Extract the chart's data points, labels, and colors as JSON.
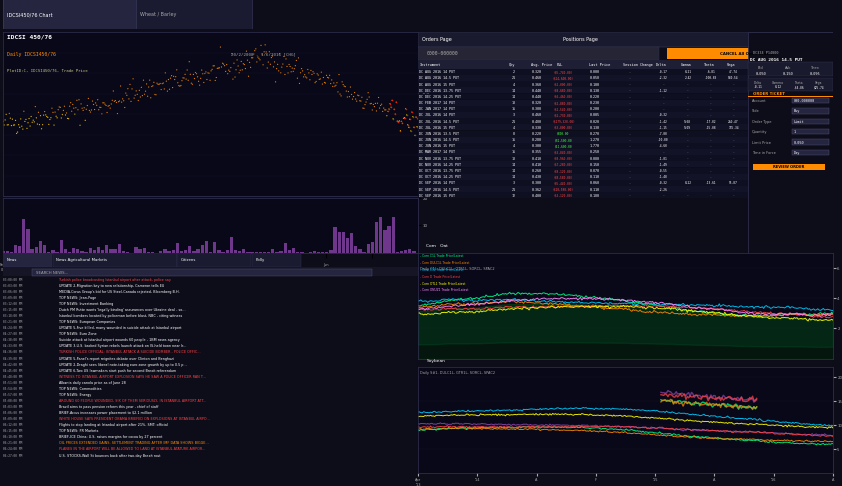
{
  "dark_bg": "#0d0d1a",
  "accent_orange": "#ff8c00",
  "text_white": "#ffffff",
  "text_gray": "#aaaaaa",
  "text_orange": "#ff8c00",
  "text_red": "#ff4444",
  "text_green": "#44ff44",
  "news_headlines": [
    "Turkish police broadcasting Istanbul airport after attack, police say",
    "UPDATE 2-Migration key to new relationship, Cameron tells EU",
    "MEDIA-Corus Group's bid for US Steel-Canada rejected- Bloomberg B.H.",
    "TOP NEWS: Jean-Page",
    "TOP NEWS: Investment Banking",
    "Dutch PM Rutte wants 'legally binding' assurances over Ukraine deal - sources",
    "Istanbul bombers located by policeman before blast, NBC - citing witness",
    "TOP NEWS: European Companies",
    "UPDATE 5-Five killed, many wounded in suicide attack at Istanbul airport",
    "TOP NEWS: Euro Zone",
    "Suicide attack at Istanbul airport wounds 60 people - 1BM news agency",
    "UPDATE 3-U.S. backed Syrian rebels launch attack on IS-held town near Iraq border",
    "TURKISH POLICE OFFICIAL: ISTANBUL ATTACK A SUICIDE BOMBER - POLICE OFFICIAL TELLS REUTERS",
    "UPDATE 5-Panel's report reignites debate over Clinton and Benghazi",
    "UPDATE 2-Draghi sees liberal note-taking euro zone growth by up to 0.5 pct over 3 years",
    "UPDATE 6-Two US lawmakers start push for second Brexit referendum",
    "WITNESS TO ISTANBUL AIRPORT EXPLOSION SAYS HE SAW A POLICE OFFICER RAN TO A SUICIDE BOMBER",
    "Albania daily canola price as of June 28",
    "TOP NEWS: Commodities",
    "TOP NEWS: Energy",
    "AROUND 60 PEOPLE WOUNDED, SIX OF THEM SERIOUSLY, IN ISTANBUL AIRPORT ATTACK - ANADOLU AGENCY",
    "Brazil aims to pass pension reform this year - chief of staff",
    "BRIEF-Arcus increases power placement to $2.1 million",
    "WHITE HOUSE SAYS PRESIDENT OBAMA BRIEFED ON EXPLOSIONS AT ISTANBUL AIRPORT ON TUESDAY",
    "Flights to stop landing at Istanbul airport after 21%- SMT: official",
    "TOP NEWS: PR Markets",
    "BRIEF-ICE China: U.S. raises margins for cocoa by 27 percent",
    "OIL PRICES EXTENDED GAINS, SETTLEMENT TRADING AFTER IMF DATA SHOWS BIGGER DRAWDOWN IN U.S. CRUDE STOCKS",
    "PLANES IN THE AIRPORT WILL BE ALLOWED TO LAND AT ISTANBUL ATATURK AIRPORT - TURKISH AIRLINES OFFICIAL",
    "U.S. STOCKS-Wall St bounces back after two-day Brexit rout"
  ],
  "positions": [
    {
      "instrument": "DC AUG 2016 14 PUT",
      "qty": 2,
      "avg_price": 0.32,
      "pnl": -5740.0,
      "last_price": 0.0,
      "delta": -0.17,
      "gamma": 0.21,
      "theta": -6.81,
      "vega": 47.74
    },
    {
      "instrument": "DC AUG 2016 14.5 PUT",
      "qty": 21,
      "avg_price": 0.46,
      "pnl": -14600.0,
      "last_price": 0.05,
      "delta": -2.32,
      "gamma": 2.42,
      "theta": -100.83,
      "vega": 540.54
    },
    {
      "instrument": "DC AUG 2016 15 PUT",
      "qty": 4,
      "avg_price": 0.36,
      "pnl": -2000.0,
      "last_price": 0.1
    },
    {
      "instrument": "DC DEC 2016 13.75 PUT",
      "qty": 14,
      "avg_price": 0.44,
      "pnl": -8680.0,
      "last_price": 0.13,
      "delta": -1.12
    },
    {
      "instrument": "DC DEC 2016 14.25 PUT",
      "qty": 14,
      "avg_price": 0.44,
      "pnl": -6460.0,
      "last_price": 0.22
    },
    {
      "instrument": "DC FEB 2017 14 PUT",
      "qty": 18,
      "avg_price": 0.32,
      "pnl": -2880.0,
      "last_price": 0.23
    },
    {
      "instrument": "DC JAN 2017 14 PUT",
      "qty": 16,
      "avg_price": 0.3,
      "pnl": -2540.0,
      "last_price": 0.2
    },
    {
      "instrument": "DC JUL 2016 14 PUT",
      "qty": 3,
      "avg_price": 0.46,
      "pnl": -2730.0,
      "last_price": 0.005,
      "delta": -0.32
    },
    {
      "instrument": "DC JUL 2016 14.5 PUT",
      "qty": 21,
      "avg_price": 0.48,
      "pnl": -179320.0,
      "last_price": 0.02,
      "delta": -1.42,
      "gamma": 9.68,
      "theta": -17.02,
      "vega": 260.47
    },
    {
      "instrument": "DC JUL 2016 15 PUT",
      "qty": 4,
      "avg_price": 0.33,
      "pnl": -3000.0,
      "last_price": 0.13,
      "delta": -1.15,
      "gamma": 9.09,
      "theta": -15.08,
      "vega": 135.34
    },
    {
      "instrument": "DC JUN 2016 13.5 PUT",
      "qty": 8,
      "avg_price": 0.22,
      "pnl": 800.0,
      "last_price": 0.27,
      "delta": -7.0
    },
    {
      "instrument": "DC JUN 2016 14.5 PUT",
      "qty": 16,
      "avg_price": 0.28,
      "pnl": 31500.0,
      "last_price": 1.27,
      "delta": -10.0
    },
    {
      "instrument": "DC JUN 2016 15 PUT",
      "qty": 4,
      "avg_price": 0.3,
      "pnl": 11600.0,
      "last_price": 1.77,
      "delta": -4.6
    },
    {
      "instrument": "DC MAR 2017 14 PUT",
      "qty": 16,
      "avg_price": 0.355,
      "pnl": -3040.0,
      "last_price": 0.25
    },
    {
      "instrument": "DC NOV 2016 13.75 PUT",
      "qty": 18,
      "avg_price": 0.41,
      "pnl": -8960.0,
      "last_price": 0.08,
      "delta": -1.01
    },
    {
      "instrument": "DC NOV 2016 14.25 PUT",
      "qty": 14,
      "avg_price": 0.41,
      "pnl": -7280.0,
      "last_price": 0.15,
      "delta": -1.49
    },
    {
      "instrument": "DC OCT 2016 13.75 PUT",
      "qty": 14,
      "avg_price": 0.26,
      "pnl": -8120.0,
      "last_price": 0.07,
      "delta": -0.55
    },
    {
      "instrument": "DC OCT 2016 14.25 PUT",
      "qty": 14,
      "avg_price": 0.43,
      "pnl": -8580.0,
      "last_price": 0.11,
      "delta": -1.48
    },
    {
      "instrument": "DC SEP 2016 14 PUT",
      "qty": 3,
      "avg_price": 0.3,
      "pnl": -5440.0,
      "last_price": 0.06,
      "delta": -0.32,
      "gamma": 0.22,
      "theta": -13.61,
      "vega": 95.87
    },
    {
      "instrument": "DC SEP 2016 14.5 PUT",
      "qty": 21,
      "avg_price": 0.362,
      "pnl": -10580.0,
      "last_price": 0.11,
      "delta": -2.26
    },
    {
      "instrument": "DC SEP 2016 15 PUT",
      "qty": 12,
      "avg_price": 0.4,
      "pnl": -3120.0,
      "last_price": 0.18
    }
  ],
  "chart_colors": {
    "scatter_orange": "#ff8c00",
    "scatter_yellow": "#ffcc00",
    "volume_purple": "#8844aa",
    "corn_line1": "#00ff88",
    "corn_line2": "#ff8800",
    "corn_line3": "#00ccff",
    "corn_line4": "#ff4444",
    "corn_line5": "#ffff00",
    "corn_line6": "#ff88ff",
    "soy_line1": "#00ff88",
    "soy_line2": "#ff8800",
    "soy_line3": "#8844aa",
    "soy_line4": "#ff4444",
    "soy_line5": "#00ccff",
    "soy_line6": "#ffff00"
  }
}
